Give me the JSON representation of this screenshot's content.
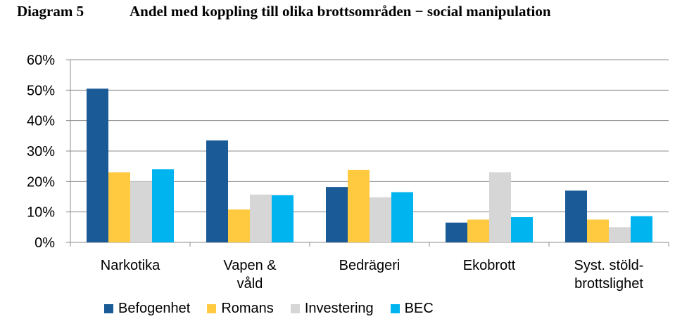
{
  "figure": {
    "label": "Diagram 5",
    "title": "Andel med koppling till olika brottsområden − social manipulation"
  },
  "chart_data": {
    "type": "bar",
    "categories": [
      [
        "Narkotika"
      ],
      [
        "Vapen &",
        "våld"
      ],
      [
        "Bedrägeri"
      ],
      [
        "Ekobrott"
      ],
      [
        "Syst. stöld-",
        "brottslighet"
      ]
    ],
    "series": [
      {
        "name": "Befogenhet",
        "color": "#1a5a96",
        "values": [
          50.5,
          33.5,
          18.2,
          6.5,
          17.0
        ]
      },
      {
        "name": "Romans",
        "color": "#ffc940",
        "values": [
          23.0,
          10.8,
          23.8,
          7.5,
          7.5
        ]
      },
      {
        "name": "Investering",
        "color": "#d6d6d6",
        "values": [
          20.0,
          15.7,
          14.8,
          23.0,
          5.0
        ]
      },
      {
        "name": "BEC",
        "color": "#00b4f0",
        "values": [
          24.0,
          15.5,
          16.5,
          8.3,
          8.6
        ]
      }
    ],
    "ylim": [
      0,
      60
    ],
    "yticks": [
      "0%",
      "10%",
      "20%",
      "30%",
      "40%",
      "50%",
      "60%"
    ],
    "grid": true,
    "legend_position": "bottom"
  }
}
